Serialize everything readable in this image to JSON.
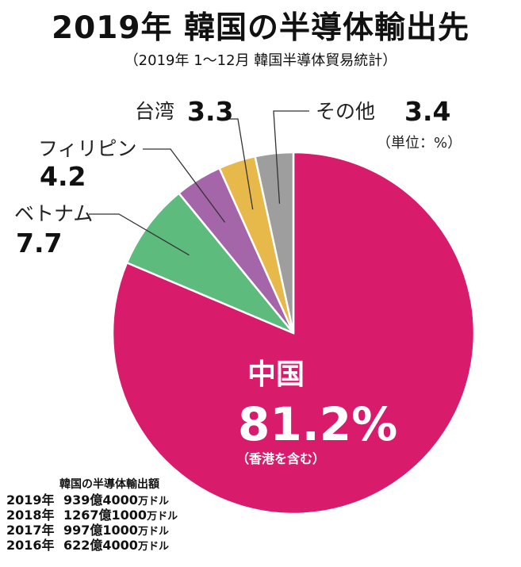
{
  "title": "2019年 韓国の半導体輸出先",
  "subtitle": "（2019年 1～12月 韓国半導体貿易統計）",
  "unit_note": "（単位：%）",
  "chart_data": {
    "type": "pie",
    "title": "2019年 韓国の半導体輸出先",
    "slices": [
      {
        "label": "中国",
        "value": 81.2,
        "value_text": "81.2%",
        "note": "（香港を含む）",
        "color": "#d81b6a"
      },
      {
        "label": "ベトナム",
        "value": 7.7,
        "value_text": "7.7",
        "color": "#5dbb7e"
      },
      {
        "label": "フィリピン",
        "value": 4.2,
        "value_text": "4.2",
        "color": "#a466a8"
      },
      {
        "label": "台湾",
        "value": 3.3,
        "value_text": "3.3",
        "color": "#e7b84a"
      },
      {
        "label": "その他",
        "value": 3.4,
        "value_text": "3.4",
        "color": "#9e9e9e"
      }
    ]
  },
  "export_table": {
    "caption": "韓国の半導体輸出額",
    "rows": [
      {
        "year": "2019年",
        "amount": "939億4000",
        "unit": "万ドル"
      },
      {
        "year": "2018年",
        "amount": "1267億1000",
        "unit": "万ドル"
      },
      {
        "year": "2017年",
        "amount": "997億1000",
        "unit": "万ドル"
      },
      {
        "year": "2016年",
        "amount": "622億4000",
        "unit": "万ドル"
      }
    ]
  }
}
